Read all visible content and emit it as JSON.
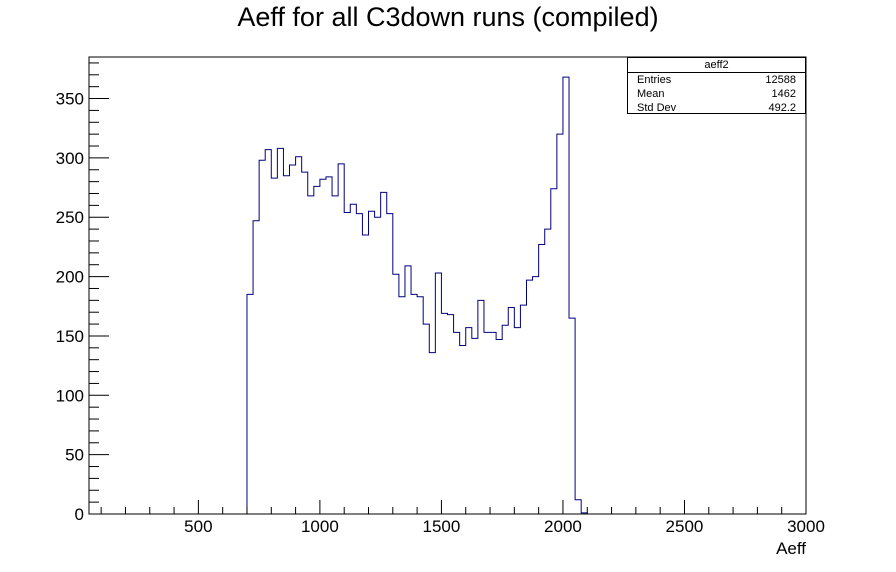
{
  "chart_data": {
    "type": "bar",
    "style": "step-histogram",
    "title": "Aeff for all C3down runs (compiled)",
    "xlabel": "Aeff",
    "ylabel": "",
    "xlim": [
      50,
      3000
    ],
    "ylim": [
      0,
      385
    ],
    "x_ticks": [
      500,
      1000,
      1500,
      2000,
      2500,
      3000
    ],
    "y_ticks": [
      0,
      50,
      100,
      150,
      200,
      250,
      300,
      350
    ],
    "bin_width": 25,
    "bin_edges_start": 700,
    "values": [
      185,
      247,
      298,
      307,
      283,
      308,
      285,
      294,
      301,
      288,
      268,
      276,
      282,
      284,
      268,
      295,
      254,
      261,
      253,
      235,
      255,
      250,
      271,
      253,
      202,
      183,
      209,
      185,
      183,
      160,
      136,
      203,
      169,
      168,
      153,
      142,
      157,
      148,
      180,
      153,
      153,
      147,
      159,
      174,
      157,
      176,
      197,
      200,
      227,
      240,
      274,
      320,
      368,
      165,
      12,
      1
    ],
    "color": "#000080",
    "grid": false,
    "stats": {
      "name": "aeff2",
      "entries_label": "Entries",
      "entries": "12588",
      "mean_label": "Mean",
      "mean": "1462",
      "stddev_label": "Std Dev",
      "stddev": "492.2"
    }
  }
}
